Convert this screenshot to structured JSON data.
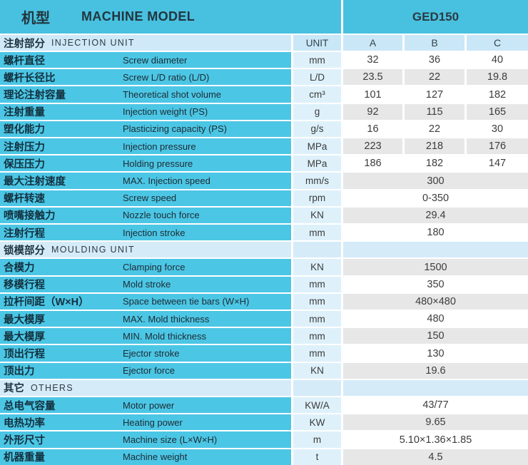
{
  "header": {
    "title_cn": "机型",
    "title_en": "MACHINE MODEL",
    "model": "GED150"
  },
  "columns": {
    "unit": "UNIT",
    "variants": [
      "A",
      "B",
      "C"
    ]
  },
  "colors": {
    "header_cyan": "#48C1E0",
    "label_cyan": "#4CC6E5",
    "subheader_blue": "#C9E7F7",
    "section_blue": "#D5EBF8",
    "unit_blue": "#DEF1FB",
    "zebra_gray": "#E7E7E7",
    "zebra_white": "#FFFFFF"
  },
  "sections": [
    {
      "title_cn": "注射部分",
      "title_en": "INJECTION UNIT",
      "rows": [
        {
          "cn": "螺杆直径",
          "en": "Screw diameter",
          "unit": "mm",
          "values": [
            "32",
            "36",
            "40"
          ]
        },
        {
          "cn": "螺杆长径比",
          "en": "Screw L/D ratio (L/D)",
          "unit": "L/D",
          "values": [
            "23.5",
            "22",
            "19.8"
          ]
        },
        {
          "cn": "理论注射容量",
          "en": "Theoretical shot volume",
          "unit": "cm³",
          "values": [
            "101",
            "127",
            "182"
          ]
        },
        {
          "cn": "注射重量",
          "en": "Injection weight (PS)",
          "unit": "g",
          "values": [
            "92",
            "115",
            "165"
          ]
        },
        {
          "cn": "塑化能力",
          "en": "Plasticizing capacity (PS)",
          "unit": "g/s",
          "values": [
            "16",
            "22",
            "30"
          ]
        },
        {
          "cn": "注射压力",
          "en": "Injection pressure",
          "unit": "MPa",
          "values": [
            "223",
            "218",
            "176"
          ]
        },
        {
          "cn": "保压压力",
          "en": "Holding pressure",
          "unit": "MPa",
          "values": [
            "186",
            "182",
            "147"
          ]
        },
        {
          "cn": "最大注射速度",
          "en": "MAX. Injection speed",
          "unit": "mm/s",
          "span": "300"
        },
        {
          "cn": "螺杆转速",
          "en": "Screw speed",
          "unit": "rpm",
          "span": "0-350"
        },
        {
          "cn": "喷嘴接触力",
          "en": "Nozzle touch force",
          "unit": "KN",
          "span": "29.4"
        },
        {
          "cn": "注射行程",
          "en": "Injection stroke",
          "unit": "mm",
          "span": "180"
        }
      ]
    },
    {
      "title_cn": "锁模部分",
      "title_en": "MOULDING UNIT",
      "rows": [
        {
          "cn": "合模力",
          "en": "Clamping force",
          "unit": "KN",
          "span": "1500"
        },
        {
          "cn": "移模行程",
          "en": "Mold stroke",
          "unit": "mm",
          "span": "350"
        },
        {
          "cn": "拉杆间距（W×H）",
          "en": "Space between tie bars (W×H)",
          "unit": "mm",
          "span": "480×480"
        },
        {
          "cn": "最大模厚",
          "en": "MAX. Mold thickness",
          "unit": "mm",
          "span": "480"
        },
        {
          "cn": "最大模厚",
          "en": "MIN. Mold thickness",
          "unit": "mm",
          "span": "150"
        },
        {
          "cn": "顶出行程",
          "en": "Ejector stroke",
          "unit": "mm",
          "span": "130"
        },
        {
          "cn": "顶出力",
          "en": "Ejector force",
          "unit": "KN",
          "span": "19.6"
        }
      ]
    },
    {
      "title_cn": "其它",
      "title_en": "OTHERS",
      "rows": [
        {
          "cn": "总电气容量",
          "en": "Motor power",
          "unit": "KW/A",
          "span": "43/77"
        },
        {
          "cn": "电热功率",
          "en": "Heating power",
          "unit": "KW",
          "span": "9.65"
        },
        {
          "cn": "外形尺寸",
          "en": "Machine size (L×W×H)",
          "unit": "m",
          "span": "5.10×1.36×1.85"
        },
        {
          "cn": "机器重量",
          "en": "Machine weight",
          "unit": "t",
          "span": "4.5"
        }
      ]
    }
  ]
}
